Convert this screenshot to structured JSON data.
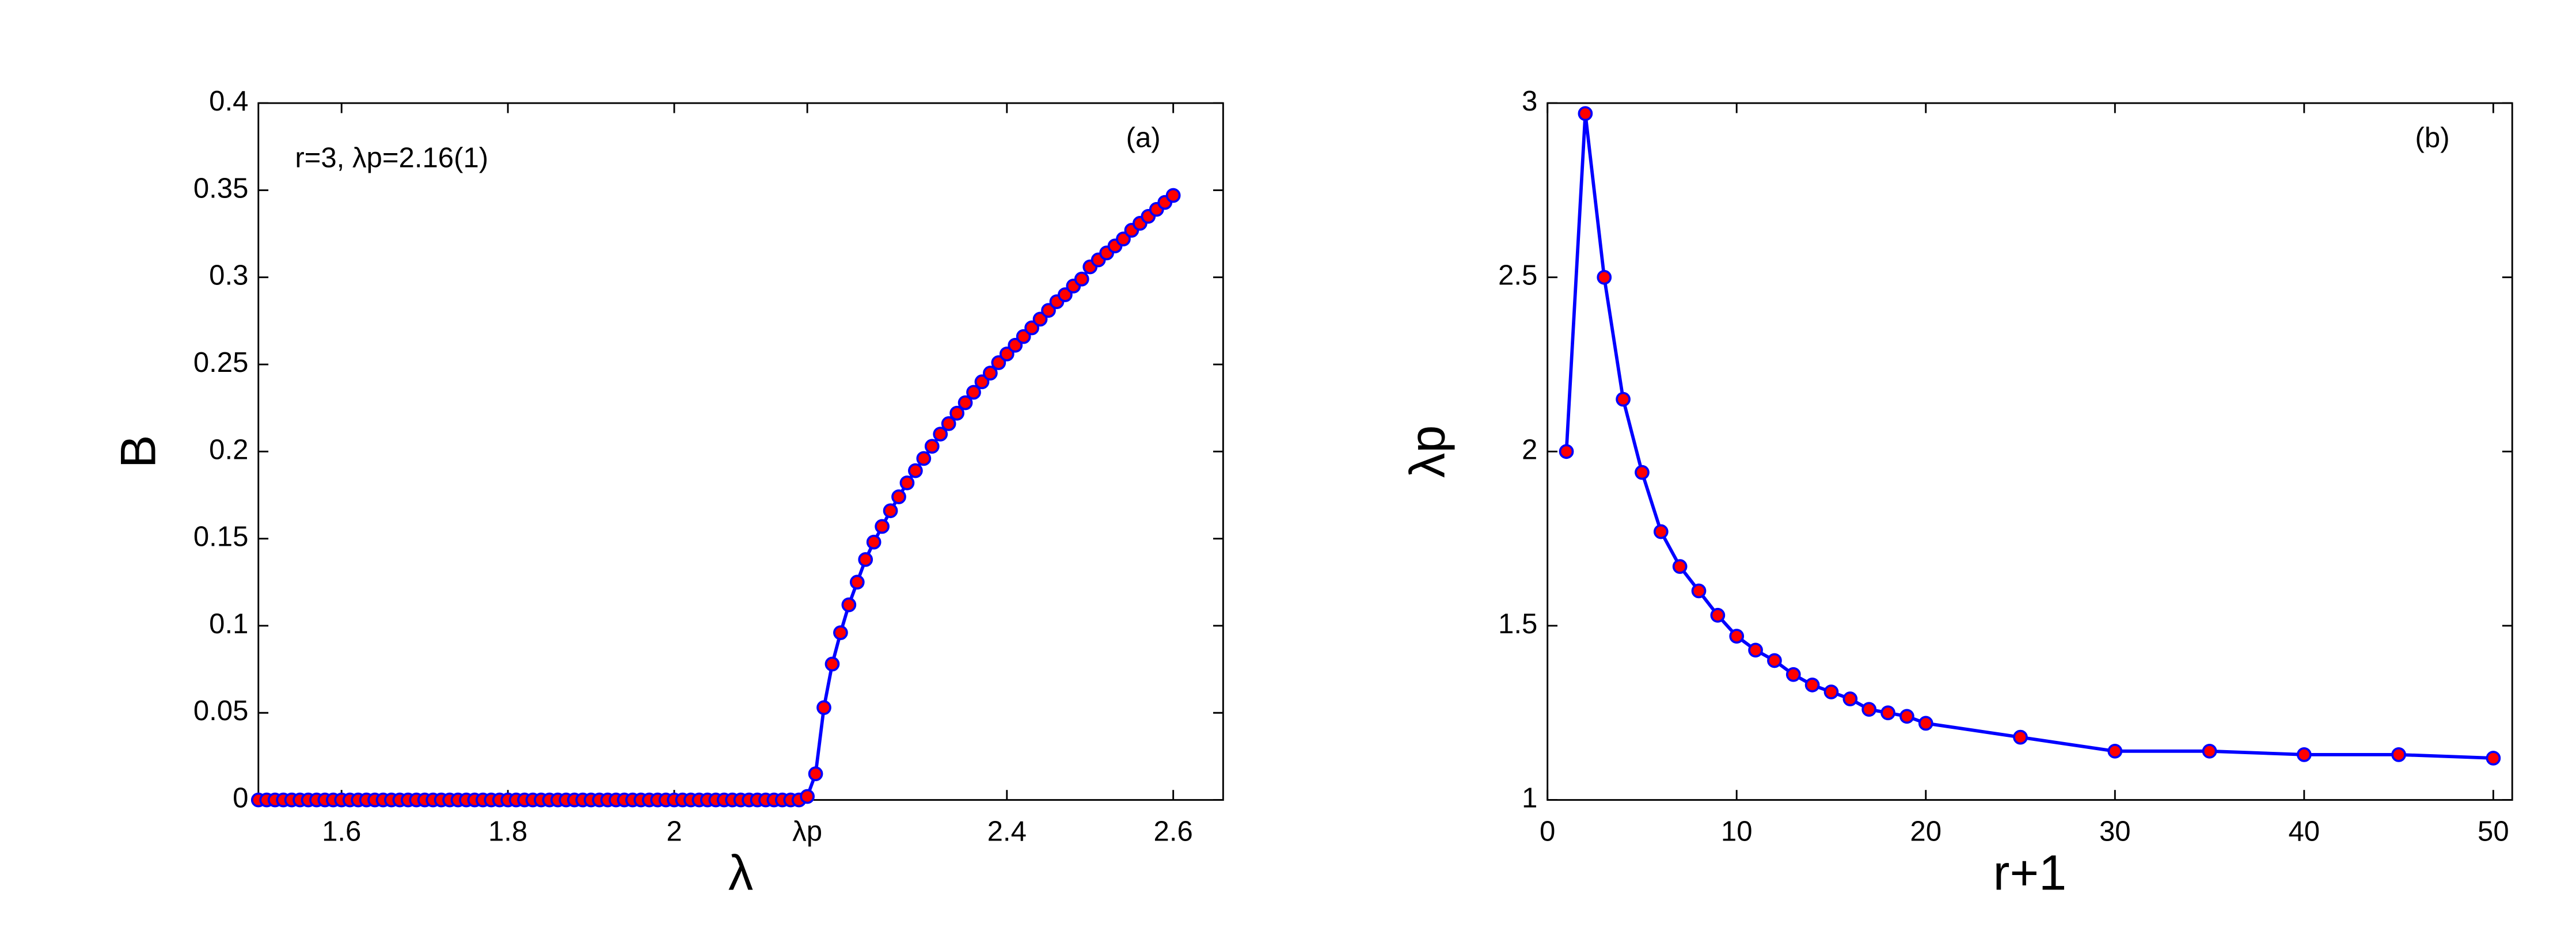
{
  "chart_data": [
    {
      "type": "line",
      "panel_label": "(a)",
      "annotation": "r=3, λp=2.16(1)",
      "xlabel": "λ",
      "ylabel": "B",
      "color": "#0000ff",
      "marker_color": "#ff0000",
      "xlim": [
        1.5,
        2.66
      ],
      "ylim": [
        0,
        0.4
      ],
      "xticks": [
        1.6,
        1.8,
        2,
        {
          "value": 2.16,
          "label": "λp"
        },
        2.4,
        2.6
      ],
      "yticks": [
        0,
        0.05,
        0.1,
        0.15,
        0.2,
        0.25,
        0.3,
        0.35,
        0.4
      ],
      "x": [
        1.5,
        1.51,
        1.52,
        1.53,
        1.54,
        1.55,
        1.56,
        1.57,
        1.58,
        1.59,
        1.6,
        1.61,
        1.62,
        1.63,
        1.64,
        1.65,
        1.66,
        1.67,
        1.68,
        1.69,
        1.7,
        1.71,
        1.72,
        1.73,
        1.74,
        1.75,
        1.76,
        1.77,
        1.78,
        1.79,
        1.8,
        1.81,
        1.82,
        1.83,
        1.84,
        1.85,
        1.86,
        1.87,
        1.88,
        1.89,
        1.9,
        1.91,
        1.92,
        1.93,
        1.94,
        1.95,
        1.96,
        1.97,
        1.98,
        1.99,
        2,
        2.01,
        2.02,
        2.03,
        2.04,
        2.05,
        2.06,
        2.07,
        2.08,
        2.09,
        2.1,
        2.11,
        2.12,
        2.13,
        2.14,
        2.15,
        2.16,
        2.17,
        2.18,
        2.19,
        2.2,
        2.21,
        2.22,
        2.23,
        2.24,
        2.25,
        2.26,
        2.27,
        2.28,
        2.29,
        2.3,
        2.31,
        2.32,
        2.33,
        2.34,
        2.35,
        2.36,
        2.37,
        2.38,
        2.39,
        2.4,
        2.41,
        2.42,
        2.43,
        2.44,
        2.45,
        2.46,
        2.47,
        2.48,
        2.49,
        2.5,
        2.51,
        2.52,
        2.53,
        2.54,
        2.55,
        2.56,
        2.57,
        2.58,
        2.59,
        2.6
      ],
      "values": [
        0,
        0,
        0,
        0,
        0,
        0,
        0,
        0,
        0,
        0,
        0,
        0,
        0,
        0,
        0,
        0,
        0,
        0,
        0,
        0,
        0,
        0,
        0,
        0,
        0,
        0,
        0,
        0,
        0,
        0,
        0,
        0,
        0,
        0,
        0,
        0,
        0,
        0,
        0,
        0,
        0,
        0,
        0,
        0,
        0,
        0,
        0,
        0,
        0,
        0,
        0,
        0,
        0,
        0,
        0,
        0,
        0,
        0,
        0,
        0,
        0,
        0,
        0,
        0,
        0,
        0,
        0.002,
        0.015,
        0.053,
        0.078,
        0.096,
        0.112,
        0.125,
        0.138,
        0.148,
        0.157,
        0.166,
        0.174,
        0.182,
        0.189,
        0.196,
        0.203,
        0.21,
        0.216,
        0.222,
        0.228,
        0.234,
        0.24,
        0.245,
        0.251,
        0.256,
        0.261,
        0.266,
        0.271,
        0.276,
        0.281,
        0.286,
        0.29,
        0.295,
        0.299,
        0.306,
        0.31,
        0.314,
        0.318,
        0.322,
        0.327,
        0.331,
        0.335,
        0.339,
        0.343,
        0.347
      ]
    },
    {
      "type": "line",
      "panel_label": "(b)",
      "xlabel": "r+1",
      "ylabel": "λp",
      "color": "#0000ff",
      "marker_color": "#ff0000",
      "xlim": [
        0,
        51
      ],
      "ylim": [
        1,
        3
      ],
      "xticks": [
        0,
        10,
        20,
        30,
        40,
        50
      ],
      "yticks": [
        1,
        1.5,
        2,
        2.5,
        3
      ],
      "x": [
        1,
        2,
        3,
        4,
        5,
        6,
        7,
        8,
        9,
        10,
        11,
        12,
        13,
        14,
        15,
        16,
        17,
        18,
        19,
        20,
        25,
        30,
        35,
        40,
        45,
        50
      ],
      "values": [
        2.0,
        2.97,
        2.5,
        2.15,
        1.94,
        1.77,
        1.67,
        1.6,
        1.53,
        1.47,
        1.43,
        1.4,
        1.36,
        1.33,
        1.31,
        1.29,
        1.26,
        1.25,
        1.24,
        1.22,
        1.18,
        1.14,
        1.14,
        1.13,
        1.13,
        1.12
      ]
    }
  ]
}
